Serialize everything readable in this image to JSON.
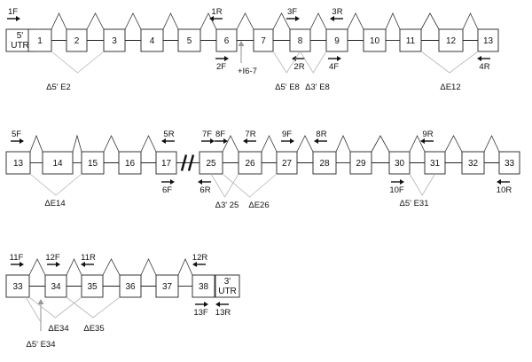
{
  "rows": [
    {
      "exons": [
        "5' UTR",
        "1",
        "2",
        "3",
        "4",
        "5",
        "6",
        "7",
        "8",
        "9",
        "10",
        "11",
        "12",
        "13"
      ],
      "primers": [
        {
          "label": "1F",
          "dir": "right"
        },
        {
          "label": "1R",
          "dir": "left"
        },
        {
          "label": "2F",
          "dir": "right"
        },
        {
          "label": "3F",
          "dir": "right"
        },
        {
          "label": "2R",
          "dir": "left"
        },
        {
          "label": "3R",
          "dir": "left"
        },
        {
          "label": "4F",
          "dir": "right"
        },
        {
          "label": "4R",
          "dir": "left"
        }
      ],
      "events": [
        {
          "label": "Δ5' E2"
        },
        {
          "label": "+I6-7"
        },
        {
          "label": "Δ5' E8"
        },
        {
          "label": "Δ3' E8"
        },
        {
          "label": "ΔE12"
        }
      ]
    },
    {
      "exons": [
        "13",
        "14",
        "15",
        "16",
        "17",
        "25",
        "26",
        "27",
        "28",
        "29",
        "30",
        "31",
        "32",
        "33"
      ],
      "primers": [
        {
          "label": "5F",
          "dir": "right"
        },
        {
          "label": "5R",
          "dir": "left"
        },
        {
          "label": "6F",
          "dir": "right"
        },
        {
          "label": "7F",
          "dir": "right"
        },
        {
          "label": "8F",
          "dir": "right"
        },
        {
          "label": "6R",
          "dir": "left"
        },
        {
          "label": "7R",
          "dir": "left"
        },
        {
          "label": "9F",
          "dir": "right"
        },
        {
          "label": "8R",
          "dir": "left"
        },
        {
          "label": "9R",
          "dir": "left"
        },
        {
          "label": "10F",
          "dir": "right"
        },
        {
          "label": "10R",
          "dir": "left"
        }
      ],
      "events": [
        {
          "label": "ΔE14"
        },
        {
          "label": "Δ3' 25"
        },
        {
          "label": "ΔE26"
        },
        {
          "label": "Δ5' E31"
        }
      ]
    },
    {
      "exons": [
        "33",
        "34",
        "35",
        "36",
        "37",
        "38",
        "3' UTR"
      ],
      "primers": [
        {
          "label": "11F",
          "dir": "right"
        },
        {
          "label": "12F",
          "dir": "right"
        },
        {
          "label": "11R",
          "dir": "left"
        },
        {
          "label": "12R",
          "dir": "left"
        },
        {
          "label": "13F",
          "dir": "right"
        },
        {
          "label": "13R",
          "dir": "left"
        }
      ],
      "events": [
        {
          "label": "Δ5' E34"
        },
        {
          "label": "ΔE34"
        },
        {
          "label": "ΔE35"
        }
      ]
    }
  ]
}
